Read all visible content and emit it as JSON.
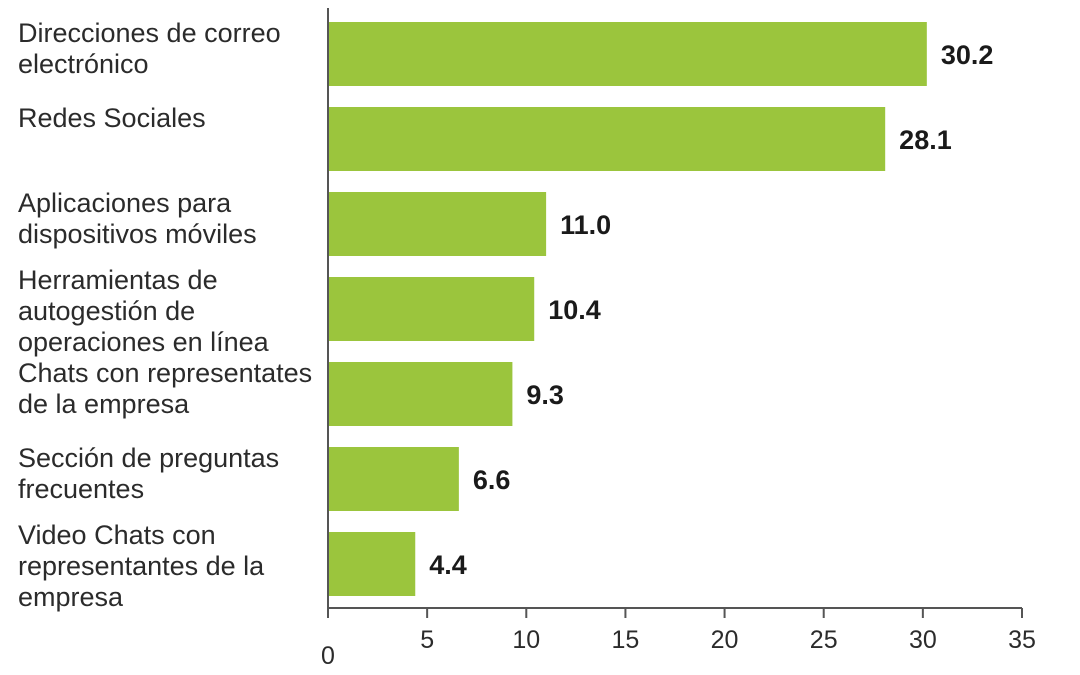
{
  "chart_data": {
    "type": "bar",
    "orientation": "horizontal",
    "categories": [
      [
        "Direcciones de correo",
        "electrónico"
      ],
      [
        "Redes Sociales"
      ],
      [
        "Aplicaciones para",
        "dispositivos móviles"
      ],
      [
        "Herramientas de",
        "autogestión de",
        "operaciones en línea"
      ],
      [
        "Chats con representates",
        "de la empresa"
      ],
      [
        "Sección de preguntas",
        "frecuentes"
      ],
      [
        "Video Chats con",
        "representantes de la",
        "empresa"
      ]
    ],
    "values": [
      30.2,
      28.1,
      11.0,
      10.4,
      9.3,
      6.6,
      4.4
    ],
    "value_labels": [
      "30.2",
      "28.1",
      "11.0",
      "10.4",
      "9.3",
      "6.6",
      "4.4"
    ],
    "xlim": [
      0,
      35
    ],
    "xticks": [
      0,
      5,
      10,
      15,
      20,
      25,
      30,
      35
    ],
    "title": "",
    "xlabel": "",
    "ylabel": "",
    "grid": false,
    "legend": "none",
    "bar_color": "#9bc53d",
    "axis_color": "#555555"
  }
}
